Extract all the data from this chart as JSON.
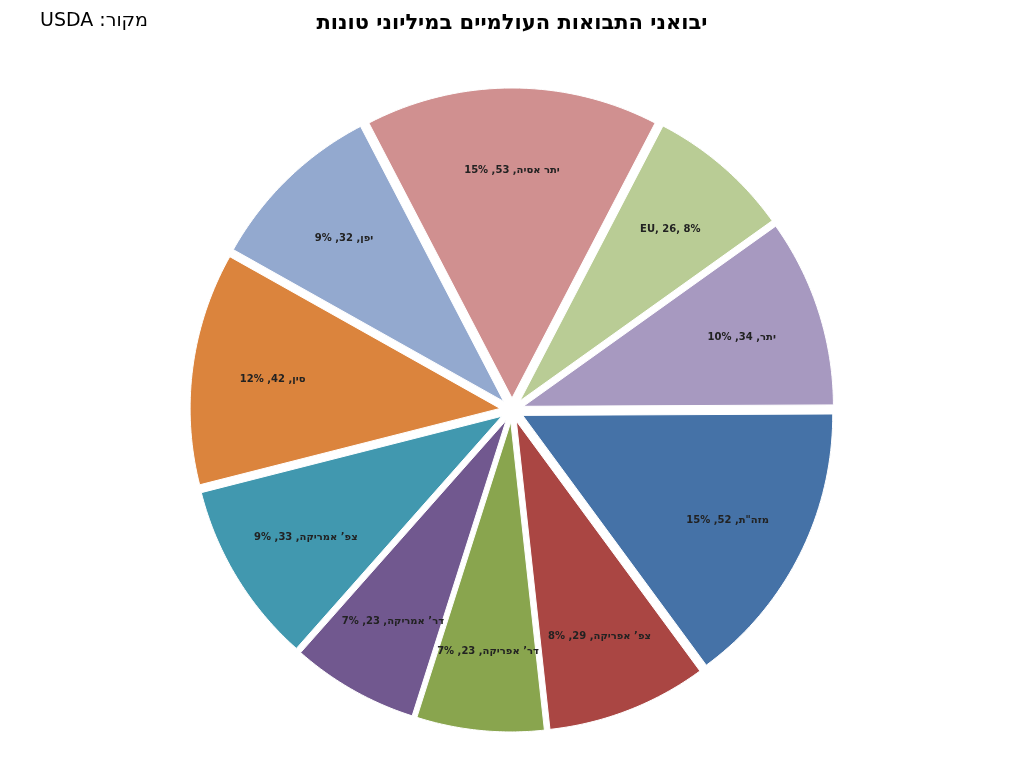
{
  "chart_data": {
    "type": "pie",
    "title": "יבואני התבואות העולמיים במיליוני טונות",
    "annotations": [
      "מקור: USDA"
    ],
    "categories": [
      "יתר אסיה",
      "EU",
      "יתר",
      "מזה\"ת",
      "צפ’ אפריקה",
      "דר’ אפריקה",
      "דר’ אמריקה",
      "צפ’ אמריקה",
      "סין",
      "יפן"
    ],
    "values": [
      53,
      26,
      34,
      52,
      29,
      23,
      23,
      33,
      42,
      32
    ],
    "value_labels": [
      ", 53, 15%",
      ", 26, 8%",
      ", 34, 10%",
      ", 52, 15%",
      ", 29, 8%",
      ", 23, 7%",
      ", 23, 7%",
      ", 33, 9%",
      ", 42, 12%",
      ", 32, 9%"
    ],
    "colors": [
      "#d09090",
      "#b9cc95",
      "#a799c0",
      "#4572a7",
      "#aa4643",
      "#89a54e",
      "#71588f",
      "#4198af",
      "#db843d",
      "#93a9cf"
    ]
  }
}
